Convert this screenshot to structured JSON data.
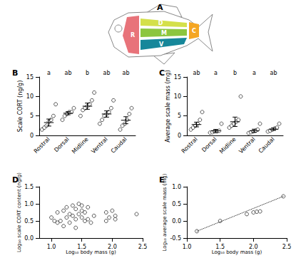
{
  "diagram": {
    "title": "A",
    "regions": [
      {
        "label": "R",
        "color": "#e8737a"
      },
      {
        "label": "D",
        "color": "#d4e04a"
      },
      {
        "label": "M",
        "color": "#8cc63f"
      },
      {
        "label": "V",
        "color": "#16879a"
      },
      {
        "label": "C",
        "color": "#f5a623"
      }
    ]
  },
  "chart_data": [
    {
      "type": "dot_plot",
      "title": "B",
      "ylabel": "Scale CORT (ng/g)",
      "categories": [
        "Rostral",
        "Dorsal",
        "Midline",
        "Ventral",
        "Caudal"
      ],
      "points": [
        [
          1.5,
          2,
          2.5,
          3.5,
          4,
          5,
          8
        ],
        [
          4,
          5,
          5.5,
          6,
          6,
          7
        ],
        [
          5,
          6.5,
          7,
          7.5,
          8,
          9,
          11
        ],
        [
          3,
          4,
          5,
          5.5,
          6,
          7,
          9
        ],
        [
          1.5,
          2.5,
          3,
          4,
          5.5,
          7
        ]
      ],
      "mean": [
        3.3,
        5.7,
        7.5,
        5.5,
        3.9
      ],
      "sem": [
        0.9,
        0.4,
        0.8,
        0.8,
        0.9
      ],
      "letters": [
        "a",
        "ab",
        "b",
        "ab",
        "ab"
      ],
      "ylim": [
        0,
        15
      ],
      "yticks": [
        0,
        5,
        10,
        15
      ],
      "grid": false,
      "color": "#000000",
      "marker": "open_circle"
    },
    {
      "type": "dot_plot",
      "title": "C",
      "ylabel": "Average scale mass (mg)",
      "categories": [
        "Rostral",
        "Dorsal",
        "Midline",
        "Ventral",
        "Caudal"
      ],
      "points": [
        [
          1.5,
          2,
          2.5,
          3,
          4,
          6
        ],
        [
          0.7,
          0.8,
          1,
          1,
          1.2,
          3
        ],
        [
          2,
          2.5,
          3,
          3.5,
          4,
          10
        ],
        [
          0.6,
          0.8,
          1,
          1.2,
          1.5,
          3
        ],
        [
          1,
          1.2,
          1.5,
          1.8,
          2,
          3
        ]
      ],
      "mean": [
        2.8,
        1.2,
        3.5,
        1.2,
        1.6
      ],
      "sem": [
        0.6,
        0.35,
        1.2,
        0.4,
        0.3
      ],
      "letters": [
        "ab",
        "a",
        "b",
        "a",
        "ab"
      ],
      "ylim": [
        0,
        15
      ],
      "yticks": [
        0,
        5,
        10,
        15
      ],
      "grid": false,
      "color": "#000000",
      "marker": "open_circle"
    },
    {
      "type": "scatter",
      "title": "D",
      "xlabel": "Log₁₀ body mass (g)",
      "ylabel": "Log₁₀ scale CORT content (ng/g)",
      "series": [
        {
          "type": "scatter",
          "marker": "open_circle",
          "color": "#000000",
          "x": [
            1.0,
            1.05,
            1.1,
            1.1,
            1.15,
            1.2,
            1.2,
            1.25,
            1.25,
            1.3,
            1.3,
            1.35,
            1.35,
            1.4,
            1.4,
            1.4,
            1.45,
            1.45,
            1.5,
            1.5,
            1.5,
            1.55,
            1.55,
            1.6,
            1.6,
            1.65,
            1.7,
            1.9,
            1.9,
            1.95,
            2.0,
            2.05,
            2.05,
            2.4
          ],
          "y": [
            0.6,
            0.5,
            0.75,
            0.45,
            0.5,
            0.8,
            0.35,
            0.6,
            0.9,
            0.7,
            0.45,
            0.65,
            0.95,
            0.85,
            0.55,
            0.3,
            1.0,
            0.7,
            0.6,
            0.8,
            0.95,
            0.5,
            0.75,
            0.9,
            0.55,
            0.45,
            0.65,
            0.75,
            0.5,
            0.6,
            0.8,
            0.55,
            0.65,
            0.7
          ]
        }
      ],
      "xlim": [
        0.8,
        2.5
      ],
      "xticks": [
        {
          "value": 1,
          "label": "1.0"
        },
        1.5,
        {
          "value": 2,
          "label": "2.0"
        },
        2.5
      ],
      "ylim": [
        0,
        1.5
      ],
      "yticks": [
        {
          "value": 0,
          "label": "0.0"
        },
        0.5,
        {
          "value": 1,
          "label": "1.0"
        },
        1.5
      ],
      "grid": false
    },
    {
      "type": "scatter",
      "title": "E",
      "xlabel": "Log₁₀ body mass (g)",
      "ylabel": "Log₁₀ average scale mass (mg)",
      "series": [
        {
          "type": "scatter",
          "marker": "open_circle",
          "color": "#000000",
          "x": [
            1.15,
            1.5,
            1.9,
            2.0,
            2.05,
            2.1,
            2.45
          ],
          "y": [
            -0.3,
            0.0,
            0.2,
            0.25,
            0.27,
            0.28,
            0.72
          ]
        },
        {
          "type": "line",
          "line_style": "dotted",
          "color": "#000000",
          "x": [
            1.15,
            2.45
          ],
          "y": [
            -0.3,
            0.72
          ]
        }
      ],
      "xlim": [
        1.0,
        2.5
      ],
      "xticks": [
        {
          "value": 1,
          "label": "1.0"
        },
        1.5,
        {
          "value": 2,
          "label": "2.0"
        },
        2.5
      ],
      "ylim": [
        -0.5,
        1.0
      ],
      "yticks": [
        -0.5,
        {
          "value": 0,
          "label": "0.0"
        },
        0.5,
        {
          "value": 1,
          "label": "1.0"
        }
      ],
      "grid": false
    }
  ]
}
